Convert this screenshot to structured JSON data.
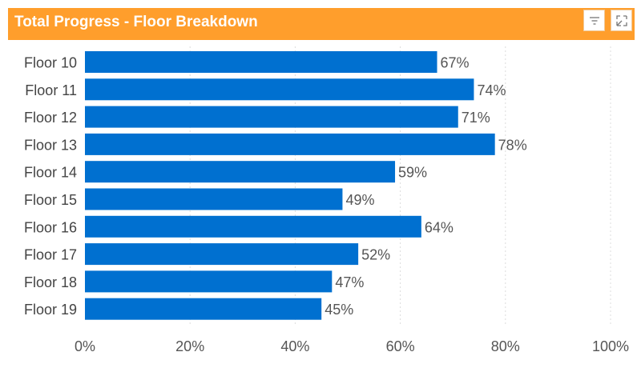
{
  "header": {
    "title": "Total Progress - Floor Breakdown",
    "filter_icon": "filter-icon",
    "expand_icon": "expand-icon"
  },
  "colors": {
    "header_bg": "#ff9e2c",
    "bar": "#0070d0",
    "label_text": "#555555",
    "grid": "#dddddd"
  },
  "chart_data": {
    "type": "bar",
    "orientation": "horizontal",
    "title": "",
    "xlabel": "",
    "ylabel": "",
    "categories": [
      "Floor 10",
      "Floor 11",
      "Floor 12",
      "Floor 13",
      "Floor 14",
      "Floor 15",
      "Floor 16",
      "Floor 17",
      "Floor 18",
      "Floor 19"
    ],
    "values": [
      67,
      74,
      71,
      78,
      59,
      49,
      64,
      52,
      47,
      45
    ],
    "value_labels": [
      "67%",
      "74%",
      "71%",
      "78%",
      "59%",
      "49%",
      "64%",
      "52%",
      "47%",
      "45%"
    ],
    "xlim": [
      0,
      100
    ],
    "x_ticks": [
      0,
      20,
      40,
      60,
      80,
      100
    ],
    "x_tick_labels": [
      "0%",
      "20%",
      "40%",
      "60%",
      "80%",
      "100%"
    ],
    "grid": "vertical-dotted",
    "legend": "none"
  }
}
